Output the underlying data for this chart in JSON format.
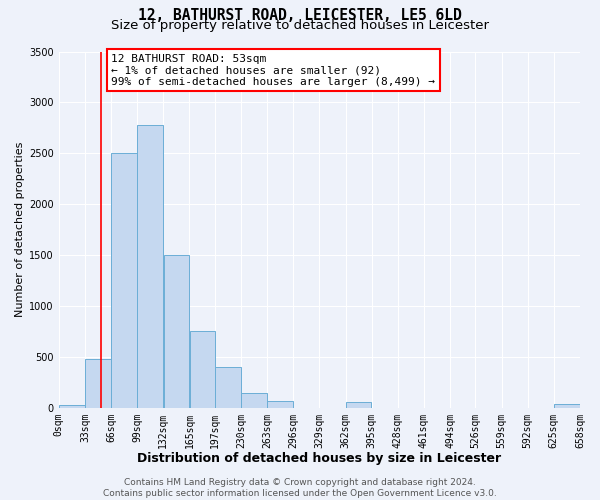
{
  "title": "12, BATHURST ROAD, LEICESTER, LE5 6LD",
  "subtitle": "Size of property relative to detached houses in Leicester",
  "xlabel": "Distribution of detached houses by size in Leicester",
  "ylabel": "Number of detached properties",
  "bar_color": "#c5d8f0",
  "bar_edge_color": "#6baed6",
  "bar_left_edges": [
    0,
    33,
    66,
    99,
    132,
    165,
    197,
    230,
    263,
    296,
    329,
    362,
    395,
    428,
    461,
    494,
    526,
    559,
    592,
    625
  ],
  "bar_widths": [
    33,
    33,
    33,
    33,
    33,
    32,
    33,
    33,
    33,
    33,
    33,
    33,
    33,
    33,
    33,
    32,
    33,
    33,
    33,
    33
  ],
  "bar_heights": [
    30,
    480,
    2500,
    2780,
    1500,
    750,
    400,
    145,
    70,
    0,
    0,
    55,
    0,
    0,
    0,
    0,
    0,
    0,
    0,
    40
  ],
  "x_tick_labels": [
    "0sqm",
    "33sqm",
    "66sqm",
    "99sqm",
    "132sqm",
    "165sqm",
    "197sqm",
    "230sqm",
    "263sqm",
    "296sqm",
    "329sqm",
    "362sqm",
    "395sqm",
    "428sqm",
    "461sqm",
    "494sqm",
    "526sqm",
    "559sqm",
    "592sqm",
    "625sqm",
    "658sqm"
  ],
  "x_tick_positions": [
    0,
    33,
    66,
    99,
    132,
    165,
    197,
    230,
    263,
    296,
    329,
    362,
    395,
    428,
    461,
    494,
    526,
    559,
    592,
    625,
    658
  ],
  "ylim": [
    0,
    3500
  ],
  "xlim": [
    0,
    658
  ],
  "red_line_x": 53,
  "annotation_line1": "12 BATHURST ROAD: 53sqm",
  "annotation_line2": "← 1% of detached houses are smaller (92)",
  "annotation_line3": "99% of semi-detached houses are larger (8,499) →",
  "footer_line1": "Contains HM Land Registry data © Crown copyright and database right 2024.",
  "footer_line2": "Contains public sector information licensed under the Open Government Licence v3.0.",
  "background_color": "#eef2fa",
  "grid_color": "#ffffff",
  "title_fontsize": 10.5,
  "subtitle_fontsize": 9.5,
  "xlabel_fontsize": 9,
  "ylabel_fontsize": 8,
  "tick_fontsize": 7,
  "annotation_fontsize": 8,
  "footer_fontsize": 6.5
}
